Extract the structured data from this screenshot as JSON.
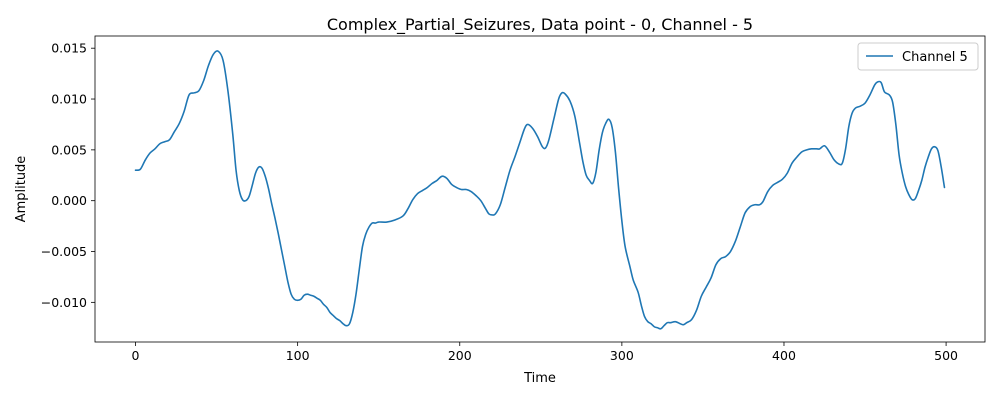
{
  "chart_data": {
    "type": "line",
    "title": "Complex_Partial_Seizures, Data point - 0, Channel - 5",
    "xlabel": "Time",
    "ylabel": "Amplitude",
    "xlim": [
      -25,
      524
    ],
    "ylim": [
      -0.0139,
      0.0162
    ],
    "xticks": [
      0,
      100,
      200,
      300,
      400,
      500
    ],
    "xtick_labels": [
      "0",
      "100",
      "200",
      "300",
      "400",
      "500"
    ],
    "yticks": [
      -0.01,
      -0.005,
      0.0,
      0.005,
      0.01,
      0.015
    ],
    "ytick_labels": [
      "−0.010",
      "−0.005",
      "0.000",
      "0.005",
      "0.010",
      "0.015"
    ],
    "grid": false,
    "legend_position": "top-right",
    "series": [
      {
        "name": "Channel 5",
        "color": "#1f77b4",
        "points": [
          [
            0,
            0.003
          ],
          [
            3,
            0.0031
          ],
          [
            6,
            0.004
          ],
          [
            9,
            0.0047
          ],
          [
            12,
            0.0051
          ],
          [
            15,
            0.0056
          ],
          [
            18,
            0.0058
          ],
          [
            21,
            0.006
          ],
          [
            24,
            0.0068
          ],
          [
            27,
            0.0076
          ],
          [
            30,
            0.0088
          ],
          [
            33,
            0.0104
          ],
          [
            36,
            0.0106
          ],
          [
            39,
            0.0108
          ],
          [
            42,
            0.0118
          ],
          [
            45,
            0.0133
          ],
          [
            48,
            0.0144
          ],
          [
            51,
            0.0147
          ],
          [
            54,
            0.0138
          ],
          [
            57,
            0.0108
          ],
          [
            60,
            0.0065
          ],
          [
            62,
            0.003
          ],
          [
            64,
            0.001
          ],
          [
            66,
            0.0001
          ],
          [
            68,
            0.0
          ],
          [
            70,
            0.0004
          ],
          [
            72,
            0.0015
          ],
          [
            74,
            0.0027
          ],
          [
            76,
            0.0033
          ],
          [
            78,
            0.0032
          ],
          [
            80,
            0.0024
          ],
          [
            82,
            0.0012
          ],
          [
            84,
            -0.0003
          ],
          [
            86,
            -0.0017
          ],
          [
            88,
            -0.0032
          ],
          [
            90,
            -0.0048
          ],
          [
            92,
            -0.0064
          ],
          [
            94,
            -0.008
          ],
          [
            96,
            -0.0092
          ],
          [
            98,
            -0.0097
          ],
          [
            100,
            -0.0098
          ],
          [
            102,
            -0.0097
          ],
          [
            104,
            -0.0093
          ],
          [
            106,
            -0.0092
          ],
          [
            108,
            -0.0093
          ],
          [
            110,
            -0.0094
          ],
          [
            112,
            -0.0096
          ],
          [
            114,
            -0.0098
          ],
          [
            116,
            -0.0102
          ],
          [
            118,
            -0.0105
          ],
          [
            120,
            -0.011
          ],
          [
            122,
            -0.0113
          ],
          [
            124,
            -0.0116
          ],
          [
            126,
            -0.0118
          ],
          [
            128,
            -0.0121
          ],
          [
            130,
            -0.0123
          ],
          [
            132,
            -0.0121
          ],
          [
            134,
            -0.011
          ],
          [
            136,
            -0.0092
          ],
          [
            138,
            -0.0068
          ],
          [
            140,
            -0.0045
          ],
          [
            142,
            -0.0033
          ],
          [
            144,
            -0.0026
          ],
          [
            146,
            -0.0022
          ],
          [
            148,
            -0.0022
          ],
          [
            150,
            -0.0021
          ],
          [
            155,
            -0.0021
          ],
          [
            160,
            -0.0019
          ],
          [
            165,
            -0.0015
          ],
          [
            168,
            -0.0008
          ],
          [
            171,
            0.0001
          ],
          [
            174,
            0.0007
          ],
          [
            177,
            0.001
          ],
          [
            180,
            0.0013
          ],
          [
            183,
            0.0017
          ],
          [
            186,
            0.002
          ],
          [
            189,
            0.0024
          ],
          [
            192,
            0.0022
          ],
          [
            195,
            0.0016
          ],
          [
            198,
            0.0013
          ],
          [
            201,
            0.0011
          ],
          [
            204,
            0.0011
          ],
          [
            207,
            0.0009
          ],
          [
            210,
            0.0005
          ],
          [
            213,
            0.0
          ],
          [
            216,
            -0.0008
          ],
          [
            218,
            -0.0013
          ],
          [
            220,
            -0.0014
          ],
          [
            222,
            -0.0013
          ],
          [
            225,
            -0.0004
          ],
          [
            228,
            0.0013
          ],
          [
            231,
            0.003
          ],
          [
            234,
            0.0043
          ],
          [
            237,
            0.0057
          ],
          [
            240,
            0.0071
          ],
          [
            242,
            0.0075
          ],
          [
            245,
            0.0071
          ],
          [
            248,
            0.0063
          ],
          [
            251,
            0.0053
          ],
          [
            253,
            0.0052
          ],
          [
            255,
            0.006
          ],
          [
            258,
            0.008
          ],
          [
            261,
            0.01
          ],
          [
            263,
            0.0106
          ],
          [
            265,
            0.0105
          ],
          [
            268,
            0.0098
          ],
          [
            271,
            0.0083
          ],
          [
            274,
            0.0056
          ],
          [
            276,
            0.0038
          ],
          [
            278,
            0.0025
          ],
          [
            280,
            0.002
          ],
          [
            282,
            0.0017
          ],
          [
            284,
            0.0028
          ],
          [
            286,
            0.005
          ],
          [
            288,
            0.0067
          ],
          [
            290,
            0.0076
          ],
          [
            292,
            0.008
          ],
          [
            294,
            0.0072
          ],
          [
            296,
            0.0048
          ],
          [
            298,
            0.0012
          ],
          [
            300,
            -0.002
          ],
          [
            302,
            -0.0045
          ],
          [
            305,
            -0.0065
          ],
          [
            307,
            -0.0078
          ],
          [
            310,
            -0.009
          ],
          [
            312,
            -0.0103
          ],
          [
            314,
            -0.0114
          ],
          [
            316,
            -0.0119
          ],
          [
            318,
            -0.0121
          ],
          [
            320,
            -0.0124
          ],
          [
            322,
            -0.0125
          ],
          [
            324,
            -0.0126
          ],
          [
            326,
            -0.0123
          ],
          [
            328,
            -0.012
          ],
          [
            330,
            -0.012
          ],
          [
            333,
            -0.0119
          ],
          [
            336,
            -0.0121
          ],
          [
            338,
            -0.0122
          ],
          [
            340,
            -0.012
          ],
          [
            343,
            -0.0117
          ],
          [
            346,
            -0.0108
          ],
          [
            349,
            -0.0094
          ],
          [
            352,
            -0.0085
          ],
          [
            355,
            -0.0076
          ],
          [
            358,
            -0.0063
          ],
          [
            361,
            -0.0057
          ],
          [
            364,
            -0.0055
          ],
          [
            367,
            -0.005
          ],
          [
            370,
            -0.004
          ],
          [
            373,
            -0.0026
          ],
          [
            376,
            -0.0012
          ],
          [
            379,
            -0.0006
          ],
          [
            382,
            -0.0004
          ],
          [
            385,
            -0.0004
          ],
          [
            387,
            -0.0001
          ],
          [
            390,
            0.0009
          ],
          [
            393,
            0.0015
          ],
          [
            396,
            0.0018
          ],
          [
            399,
            0.0021
          ],
          [
            402,
            0.0027
          ],
          [
            405,
            0.0037
          ],
          [
            408,
            0.0043
          ],
          [
            411,
            0.0048
          ],
          [
            414,
            0.005
          ],
          [
            417,
            0.0051
          ],
          [
            420,
            0.0051
          ],
          [
            422,
            0.0051
          ],
          [
            425,
            0.0054
          ],
          [
            428,
            0.0048
          ],
          [
            431,
            0.004
          ],
          [
            434,
            0.0036
          ],
          [
            436,
            0.0037
          ],
          [
            438,
            0.0051
          ],
          [
            440,
            0.0073
          ],
          [
            442,
            0.0086
          ],
          [
            444,
            0.0091
          ],
          [
            447,
            0.0093
          ],
          [
            450,
            0.0096
          ],
          [
            453,
            0.0104
          ],
          [
            456,
            0.0114
          ],
          [
            458,
            0.0117
          ],
          [
            460,
            0.0116
          ],
          [
            462,
            0.0107
          ],
          [
            465,
            0.0104
          ],
          [
            467,
            0.0097
          ],
          [
            469,
            0.0075
          ],
          [
            471,
            0.0045
          ],
          [
            473,
            0.0027
          ],
          [
            475,
            0.0014
          ],
          [
            477,
            0.0006
          ],
          [
            479,
            0.0001
          ],
          [
            481,
            0.0002
          ],
          [
            483,
            0.001
          ],
          [
            485,
            0.002
          ],
          [
            487,
            0.0033
          ],
          [
            489,
            0.0043
          ],
          [
            491,
            0.0051
          ],
          [
            493,
            0.0053
          ],
          [
            495,
            0.0049
          ],
          [
            497,
            0.0033
          ],
          [
            499,
            0.0013
          ]
        ]
      }
    ]
  }
}
